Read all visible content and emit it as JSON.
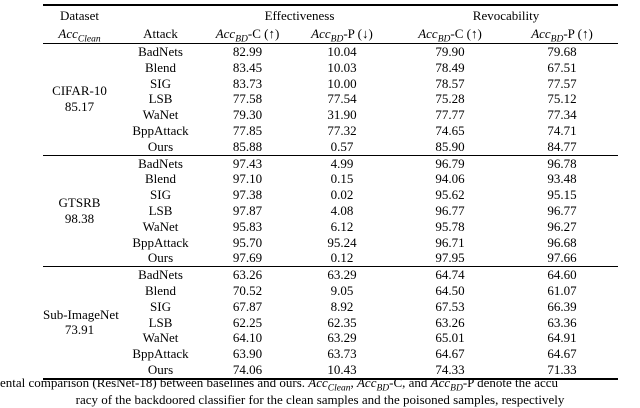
{
  "table": {
    "header": {
      "dataset_label": "Dataset",
      "acc_clean_main": "Acc",
      "acc_clean_sub": "Clean",
      "attack_label": "Attack",
      "groups": [
        {
          "label": "Effectiveness"
        },
        {
          "label": "Revocability"
        }
      ],
      "subcols": [
        {
          "main": "Acc",
          "sub": "BD",
          "suffix": "-C (↑)"
        },
        {
          "main": "Acc",
          "sub": "BD",
          "suffix": "-P (↓)"
        },
        {
          "main": "Acc",
          "sub": "BD",
          "suffix": "-C (↑)"
        },
        {
          "main": "Acc",
          "sub": "BD",
          "suffix": "-P (↑)"
        }
      ]
    },
    "blocks": [
      {
        "dataset": "CIFAR-10",
        "acc_clean": "85.17",
        "rows": [
          {
            "attack": "BadNets",
            "values": [
              "82.99",
              "10.04",
              "79.90",
              "79.68"
            ],
            "bold": []
          },
          {
            "attack": "Blend",
            "values": [
              "83.45",
              "10.03",
              "78.49",
              "67.51"
            ],
            "bold": []
          },
          {
            "attack": "SIG",
            "values": [
              "83.73",
              "10.00",
              "78.57",
              "77.57"
            ],
            "bold": []
          },
          {
            "attack": "LSB",
            "values": [
              "77.58",
              "77.54",
              "75.28",
              "75.12"
            ],
            "bold": []
          },
          {
            "attack": "WaNet",
            "values": [
              "79.30",
              "31.90",
              "77.77",
              "77.34"
            ],
            "bold": []
          },
          {
            "attack": "BppAttack",
            "values": [
              "77.85",
              "77.32",
              "74.65",
              "74.71"
            ],
            "bold": []
          },
          {
            "attack": "Ours",
            "values": [
              "85.88",
              "0.57",
              "85.90",
              "84.77"
            ],
            "bold": [
              0,
              1,
              2,
              3
            ]
          }
        ]
      },
      {
        "dataset": "GTSRB",
        "acc_clean": "98.38",
        "rows": [
          {
            "attack": "BadNets",
            "values": [
              "97.43",
              "4.99",
              "96.79",
              "96.78"
            ],
            "bold": []
          },
          {
            "attack": "Blend",
            "values": [
              "97.10",
              "0.15",
              "94.06",
              "93.48"
            ],
            "bold": []
          },
          {
            "attack": "SIG",
            "values": [
              "97.38",
              "0.02",
              "95.62",
              "95.15"
            ],
            "bold": [
              1
            ]
          },
          {
            "attack": "LSB",
            "values": [
              "97.87",
              "4.08",
              "96.77",
              "96.77"
            ],
            "bold": []
          },
          {
            "attack": "WaNet",
            "values": [
              "95.83",
              "6.12",
              "95.78",
              "96.27"
            ],
            "bold": []
          },
          {
            "attack": "BppAttack",
            "values": [
              "95.70",
              "95.24",
              "96.71",
              "96.68"
            ],
            "bold": []
          },
          {
            "attack": "Ours",
            "values": [
              "97.69",
              "0.12",
              "97.95",
              "97.66"
            ],
            "bold": [
              0,
              2,
              3
            ]
          }
        ]
      },
      {
        "dataset": "Sub-ImageNet",
        "acc_clean": "73.91",
        "rows": [
          {
            "attack": "BadNets",
            "values": [
              "63.26",
              "63.29",
              "64.74",
              "64.60"
            ],
            "bold": []
          },
          {
            "attack": "Blend",
            "values": [
              "70.52",
              "9.05",
              "64.50",
              "61.07"
            ],
            "bold": []
          },
          {
            "attack": "SIG",
            "values": [
              "67.87",
              "8.92",
              "67.53",
              "66.39"
            ],
            "bold": [
              1
            ]
          },
          {
            "attack": "LSB",
            "values": [
              "62.25",
              "62.35",
              "63.26",
              "63.36"
            ],
            "bold": []
          },
          {
            "attack": "WaNet",
            "values": [
              "64.10",
              "63.29",
              "65.01",
              "64.91"
            ],
            "bold": []
          },
          {
            "attack": "BppAttack",
            "values": [
              "63.90",
              "63.73",
              "64.67",
              "64.67"
            ],
            "bold": []
          },
          {
            "attack": "Ours",
            "values": [
              "74.06",
              "10.43",
              "74.33",
              "71.33"
            ],
            "bold": [
              0,
              2,
              3
            ]
          }
        ]
      }
    ]
  },
  "caption": {
    "line1": {
      "pre": "ental comparison (ResNet-18) between baselines and ours. ",
      "acc1_main": "Acc",
      "acc1_sub": "Clean",
      "sep1": ", ",
      "acc2_main": "Acc",
      "acc2_sub": "BD",
      "acc2_suffix": "-C",
      "sep2": ", and ",
      "acc3_main": "Acc",
      "acc3_sub": "BD",
      "acc3_suffix": "-P",
      "post": " denote the accu"
    },
    "line2": "racy of the backdoored classifier for the clean samples and the poisoned samples, respectively"
  }
}
